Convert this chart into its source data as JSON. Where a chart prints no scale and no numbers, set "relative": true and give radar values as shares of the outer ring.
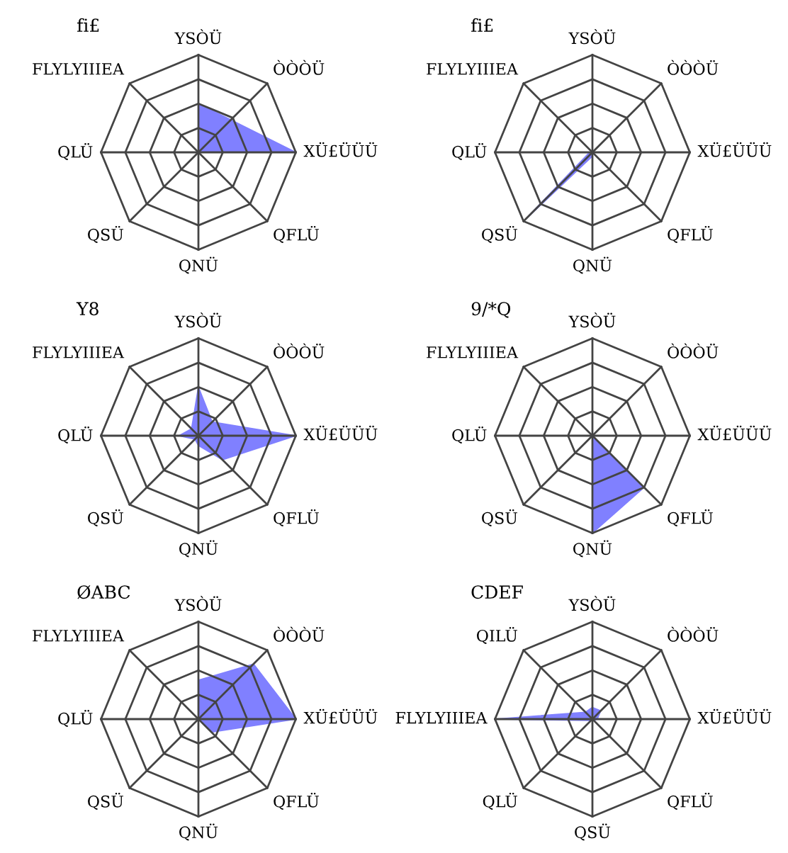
{
  "chart_data": [
    {
      "type": "radar",
      "title": "fi£",
      "relative": true,
      "grid": true,
      "categories": [
        "YSÒÜ",
        "ÒÒÒÜ",
        "XÜ£ÜÜÜ",
        "QFLÜ",
        "QNÜ",
        "QSÜ",
        "QLÜ",
        "FLYLYIIIEA"
      ],
      "series": [
        {
          "color": "#8080ff",
          "values": [
            0.5,
            null,
            1,
            0,
            0,
            0,
            0,
            0
          ]
        }
      ]
    },
    {
      "type": "radar",
      "title": "fi£",
      "relative": true,
      "grid": true,
      "categories": [
        "YSÒÜ",
        "ÒÒÒÜ",
        "XÜ£ÜÜÜ",
        "QFLÜ",
        "QNÜ",
        "QSÜ",
        "QLÜ",
        "FLYLYIIIEA"
      ],
      "series": [
        {
          "color": "#8080ff",
          "values": [
            0,
            0,
            0,
            0,
            0.04,
            1,
            0.03,
            0
          ]
        }
      ]
    },
    {
      "type": "radar",
      "title": "Y8",
      "relative": true,
      "grid": true,
      "categories": [
        "YSÒÜ",
        "ÒÒÒÜ",
        "XÜ£ÜÜÜ",
        "QFLÜ",
        "QNÜ",
        "QSÜ",
        "QLÜ",
        "FLYLYIIIEA"
      ],
      "series": [
        {
          "color": "#8080ff",
          "values": [
            0.5,
            0.2,
            1,
            0.35,
            0.1,
            0.05,
            0.2,
            0.1
          ]
        }
      ]
    },
    {
      "type": "radar",
      "title": "9/*Q",
      "relative": true,
      "grid": true,
      "categories": [
        "YSÒÜ",
        "ÒÒÒÜ",
        "XÜ£ÜÜÜ",
        "QFLÜ",
        "QNÜ",
        "QSÜ",
        "QLÜ",
        "FLYLYIIIEA"
      ],
      "series": [
        {
          "color": "#8080ff",
          "values": [
            0,
            0,
            0,
            0.75,
            1,
            0,
            0,
            0
          ]
        }
      ]
    },
    {
      "type": "radar",
      "title": "ØABC",
      "relative": true,
      "grid": true,
      "categories": [
        "YSÒÜ",
        "ÒÒÒÜ",
        "XÜ£ÜÜÜ",
        "QFLÜ",
        "QNÜ",
        "QSÜ",
        "QLÜ",
        "FLYLYIIIEA"
      ],
      "series": [
        {
          "color": "#8080ff",
          "values": [
            0.4,
            0.8,
            1,
            0.19,
            0,
            0,
            0,
            0
          ]
        }
      ]
    },
    {
      "type": "radar",
      "title": "CDEF",
      "relative": true,
      "grid": true,
      "categories": [
        "YSÒÜ",
        "ÒÒÒÜ",
        "XÜ£ÜÜÜ",
        "QFLÜ",
        "QSÜ",
        "QLÜ",
        "FLYLYIIIEA",
        "QILÜ"
      ],
      "series": [
        {
          "color": "#8080ff",
          "values": [
            0.12,
            0.12,
            0.05,
            0.02,
            0.02,
            0.02,
            1,
            0.1
          ]
        }
      ]
    }
  ]
}
